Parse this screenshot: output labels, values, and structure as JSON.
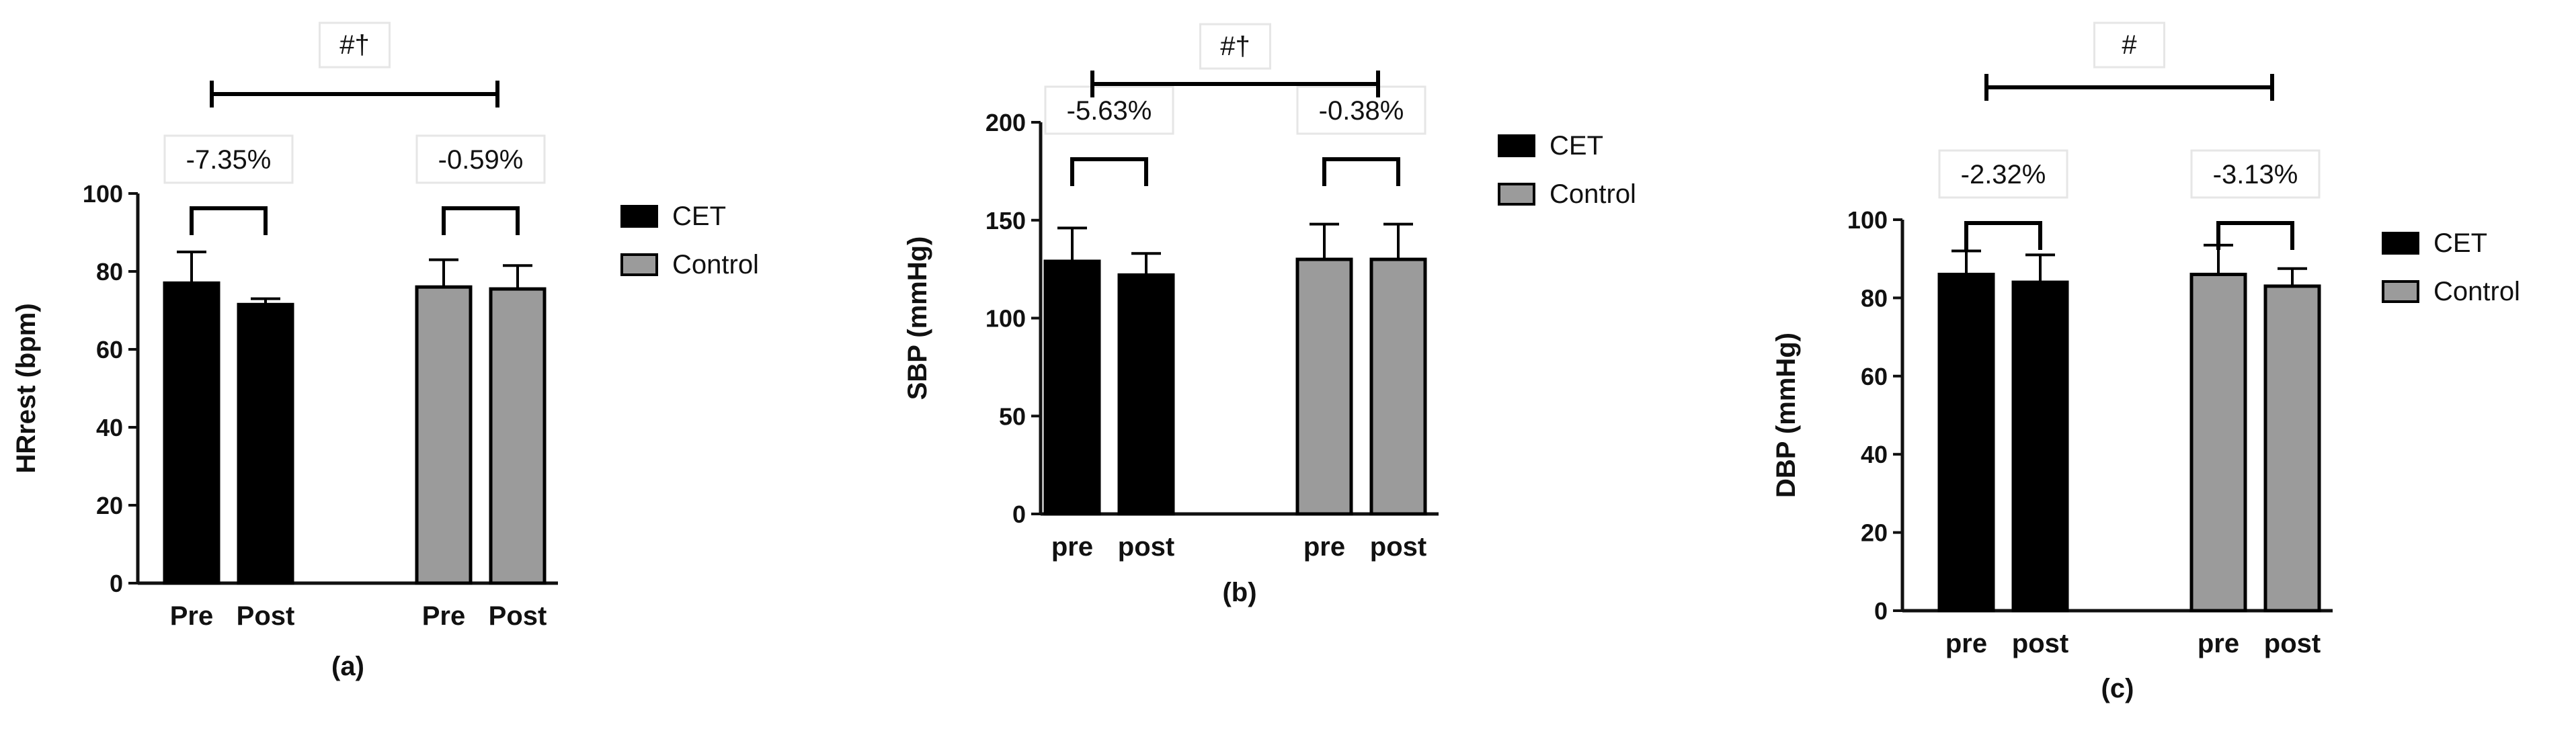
{
  "colors": {
    "cet": "#000000",
    "control": "#9b9b9b",
    "axis": "#111111",
    "labelbox": "#e6e6e6"
  },
  "chart_data": [
    {
      "type": "bar",
      "panel_label": "(a)",
      "ylabel": "HRrest (bpm)",
      "ylim": [
        0,
        100
      ],
      "yticks": [
        0,
        20,
        40,
        60,
        80,
        100
      ],
      "groups": [
        {
          "name": "CET",
          "categories": [
            "Pre",
            "Post"
          ],
          "values": [
            77,
            71.5
          ],
          "errors": [
            8,
            1.5
          ],
          "change": "-7.35%"
        },
        {
          "name": "Control",
          "categories": [
            "Pre",
            "Post"
          ],
          "values": [
            76,
            75.5
          ],
          "errors": [
            7,
            6
          ],
          "change": "-0.59%"
        }
      ],
      "significance": "#†",
      "legend": [
        "CET",
        "Control"
      ],
      "legend_position": "right"
    },
    {
      "type": "bar",
      "panel_label": "(b)",
      "ylabel": "SBP (mmHg)",
      "ylim": [
        0,
        200
      ],
      "yticks": [
        0,
        50,
        100,
        150,
        200
      ],
      "groups": [
        {
          "name": "CET",
          "categories": [
            "pre",
            "post"
          ],
          "values": [
            129,
            122
          ],
          "errors": [
            17,
            11
          ],
          "change": "-5.63%"
        },
        {
          "name": "Control",
          "categories": [
            "pre",
            "post"
          ],
          "values": [
            130,
            130
          ],
          "errors": [
            18,
            18
          ],
          "change": "-0.38%"
        }
      ],
      "significance": "#†",
      "legend": [
        "CET",
        "Control"
      ],
      "legend_position": "right"
    },
    {
      "type": "bar",
      "panel_label": "(c)",
      "ylabel": "DBP (mmHg)",
      "ylim": [
        0,
        100
      ],
      "yticks": [
        0,
        20,
        40,
        60,
        80,
        100
      ],
      "groups": [
        {
          "name": "CET",
          "categories": [
            "pre",
            "post"
          ],
          "values": [
            86,
            84
          ],
          "errors": [
            6,
            7
          ],
          "change": "-2.32%"
        },
        {
          "name": "Control",
          "categories": [
            "pre",
            "post"
          ],
          "values": [
            86,
            83
          ],
          "errors": [
            7.5,
            4.5
          ],
          "change": "-3.13%"
        }
      ],
      "significance": "#",
      "legend": [
        "CET",
        "Control"
      ],
      "legend_position": "right"
    }
  ]
}
